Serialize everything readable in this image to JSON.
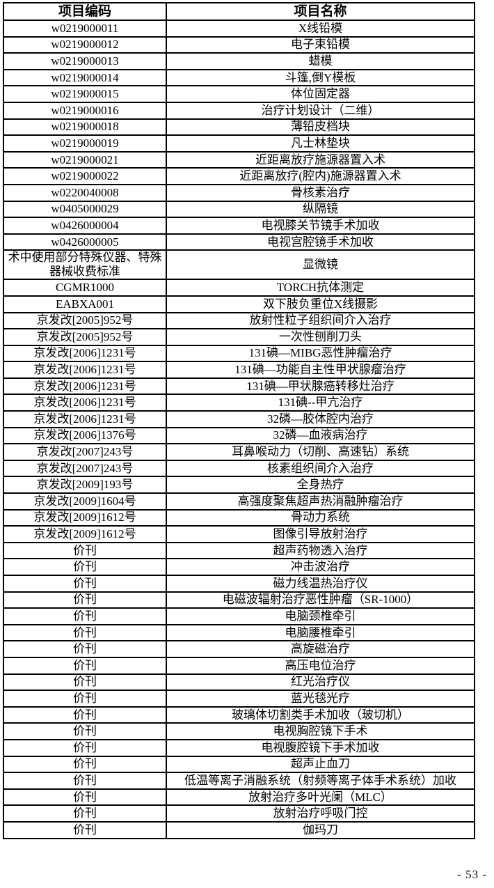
{
  "table": {
    "headers": [
      "项目编码",
      "项目名称"
    ],
    "rows": [
      {
        "code": "w0219000011",
        "name": "X线铅模"
      },
      {
        "code": "w0219000012",
        "name": "电子束铅模"
      },
      {
        "code": "w0219000013",
        "name": "蜡模"
      },
      {
        "code": "w0219000014",
        "name": "斗篷,倒Y模板"
      },
      {
        "code": "w0219000015",
        "name": "体位固定器"
      },
      {
        "code": "w0219000016",
        "name": "治疗计划设计（二维）"
      },
      {
        "code": "w0219000018",
        "name": "薄铅皮档块"
      },
      {
        "code": "w0219000019",
        "name": "凡士林垫块"
      },
      {
        "code": "w0219000021",
        "name": "近距离放疗施源器置入术"
      },
      {
        "code": "w0219000022",
        "name": "近距离放疗(腔内)施源器置入术"
      },
      {
        "code": "w0220040008",
        "name": "骨核素治疗"
      },
      {
        "code": "w0405000029",
        "name": "纵隔镜"
      },
      {
        "code": "w0426000004",
        "name": "电视膝关节镜手术加收"
      },
      {
        "code": "w0426000005",
        "name": "电视宫腔镜手术加收"
      },
      {
        "code": "术中使用部分特殊仪器、特殊器械收费标准",
        "name": "显微镜"
      },
      {
        "code": "CGMR1000",
        "name": "TORCH抗体测定"
      },
      {
        "code": "EABXA001",
        "name": "双下肢负重位X线摄影"
      },
      {
        "code": "京发改[2005]952号",
        "name": "放射性粒子组织间介入治疗"
      },
      {
        "code": "京发改[2005]952号",
        "name": "一次性刨削刀头"
      },
      {
        "code": "京发改[2006]1231号",
        "name": "131碘—MIBG恶性肿瘤治疗"
      },
      {
        "code": "京发改[2006]1231号",
        "name": "131碘—功能自主性甲状腺瘤治疗"
      },
      {
        "code": "京发改[2006]1231号",
        "name": "131碘—甲状腺癌转移灶治疗"
      },
      {
        "code": "京发改[2006]1231号",
        "name": "131碘--甲亢治疗"
      },
      {
        "code": "京发改[2006]1231号",
        "name": "32磷—胶体腔内治疗"
      },
      {
        "code": "京发改[2006]1376号",
        "name": "32磷—血液病治疗"
      },
      {
        "code": "京发改[2007]243号",
        "name": "耳鼻喉动力（切削、高速钻）系统"
      },
      {
        "code": "京发改[2007]243号",
        "name": "核素组织间介入治疗"
      },
      {
        "code": "京发改[2009]193号",
        "name": "全身热疗"
      },
      {
        "code": "京发改[2009]1604号",
        "name": "高强度聚焦超声热消融肿瘤治疗"
      },
      {
        "code": "京发改[2009]1612号",
        "name": "骨动力系统"
      },
      {
        "code": "京发改[2009]1612号",
        "name": "图像引导放射治疗"
      },
      {
        "code": "价刊",
        "name": "超声药物透入治疗"
      },
      {
        "code": "价刊",
        "name": "冲击波治疗"
      },
      {
        "code": "价刊",
        "name": "磁力线温热治疗仪"
      },
      {
        "code": "价刊",
        "name": "电磁波辐射治疗恶性肿瘤（SR-1000）"
      },
      {
        "code": "价刊",
        "name": "电脑颈椎牵引"
      },
      {
        "code": "价刊",
        "name": "电脑腰椎牵引"
      },
      {
        "code": "价刊",
        "name": "高旋磁治疗"
      },
      {
        "code": "价刊",
        "name": "高压电位治疗"
      },
      {
        "code": "价刊",
        "name": "红光治疗仪"
      },
      {
        "code": "价刊",
        "name": "蓝光毯光疗"
      },
      {
        "code": "价刊",
        "name": "玻璃体切割类手术加收（玻切机）"
      },
      {
        "code": "价刊",
        "name": "电视胸腔镜下手术"
      },
      {
        "code": "价刊",
        "name": "电视腹腔镜下手术加收"
      },
      {
        "code": "价刊",
        "name": "超声止血刀"
      },
      {
        "code": "价刊",
        "name": "低温等离子消融系统（射频等离子体手术系统）加收"
      },
      {
        "code": "价刊",
        "name": "放射治疗多叶光阑（MLC）"
      },
      {
        "code": "价刊",
        "name": "放射治疗呼吸门控"
      },
      {
        "code": "价刊",
        "name": "伽玛刀"
      }
    ]
  },
  "footer": {
    "page_label": "- 53 -"
  },
  "colors": {
    "border": "#000000",
    "text": "#000000",
    "background": "#ffffff"
  }
}
